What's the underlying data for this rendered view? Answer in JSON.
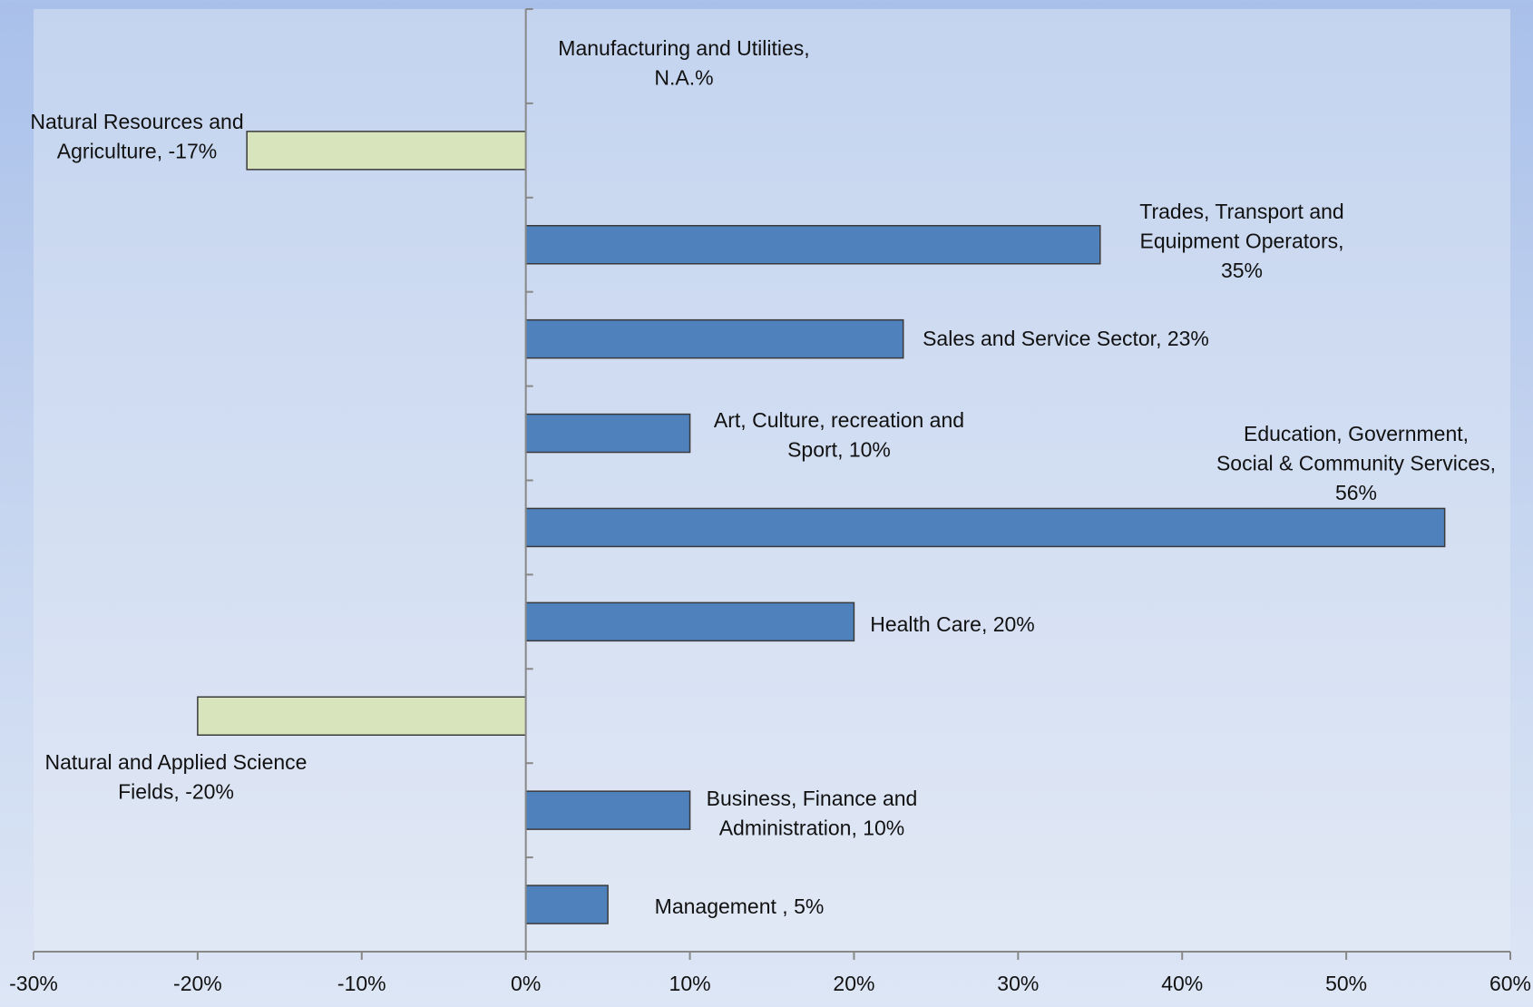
{
  "chart_data": {
    "type": "bar",
    "orientation": "horizontal",
    "title": "",
    "xlabel": "",
    "ylabel": "",
    "xlim": [
      -30,
      60
    ],
    "x_tick_values": [
      -30,
      -20,
      -10,
      0,
      10,
      20,
      30,
      40,
      50,
      60
    ],
    "x_tick_labels": [
      "-30%",
      "-20%",
      "-10%",
      "0%",
      "10%",
      "20%",
      "30%",
      "40%",
      "50%",
      "60%"
    ],
    "grid": false,
    "legend": "none",
    "colors": {
      "positive_fill": "#4f81bd",
      "negative_fill": "#d8e4bc",
      "bar_stroke": "#3a3a3a",
      "plot_area": "#c9d7f0"
    },
    "categories": [
      "Manufacturing and Utilities",
      "Natural Resources and Agriculture",
      "Trades, Transport and Equipment Operators",
      "Sales and Service Sector",
      "Art, Culture, recreation and Sport",
      "Education, Government, Social & Community Services",
      "Health Care",
      "Natural and Applied Science Fields",
      "Business, Finance and Administration",
      "Management"
    ],
    "values": [
      null,
      -17,
      35,
      23,
      10,
      56,
      20,
      -20,
      10,
      5
    ],
    "data_labels": [
      [
        "Manufacturing and Utilities,",
        "N.A.%"
      ],
      [
        "Natural Resources and",
        "Agriculture, -17%"
      ],
      [
        "Trades, Transport and",
        "Equipment Operators,",
        "35%"
      ],
      [
        "Sales and Service Sector, 23%"
      ],
      [
        "Art, Culture, recreation and",
        "Sport, 10%"
      ],
      [
        "Education, Government,",
        "Social & Community Services,",
        "56%"
      ],
      [
        "Health Care, 20%"
      ],
      [
        "Natural and Applied Science",
        "Fields, -20%"
      ],
      [
        "Business, Finance and",
        "Administration, 10%"
      ],
      [
        "Management , 5%"
      ]
    ]
  }
}
